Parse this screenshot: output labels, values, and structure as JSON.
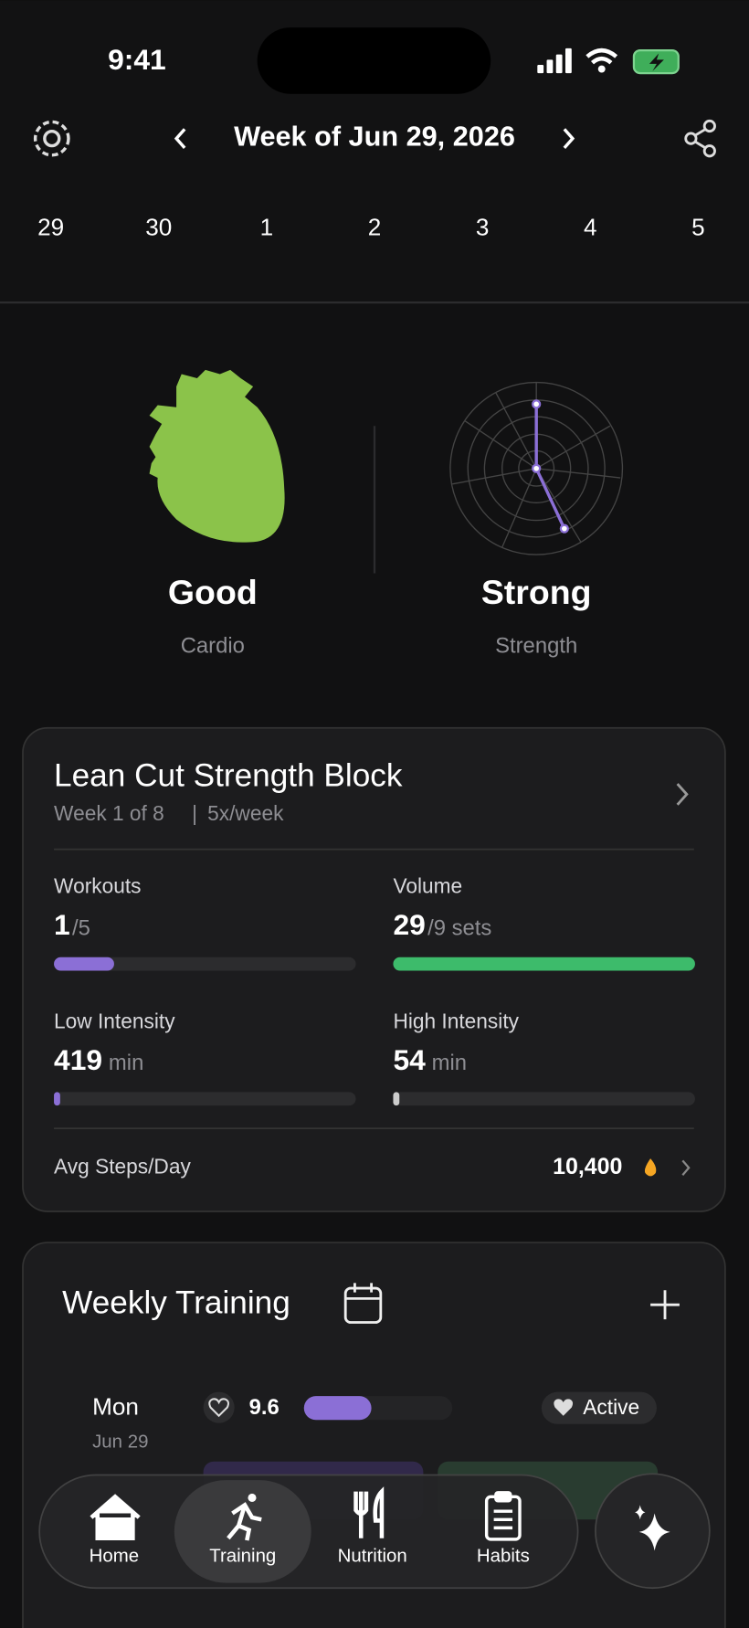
{
  "status": {
    "time": "9:41"
  },
  "header": {
    "title": "Week of Jun 29, 2026",
    "days": [
      "29",
      "30",
      "1",
      "2",
      "3",
      "4",
      "5"
    ]
  },
  "scores": [
    {
      "value": "Good",
      "label": "Cardio"
    },
    {
      "value": "Strong",
      "label": "Strength"
    }
  ],
  "program": {
    "title": "Lean Cut Strength Block",
    "week": "Week 1 of 8",
    "frequency": "5x/week",
    "metrics": [
      {
        "label": "Workouts",
        "value": "1",
        "unit": "/5"
      },
      {
        "label": "Volume",
        "value": "29",
        "unit": "/9 sets"
      },
      {
        "label": "Low Intensity",
        "value": "419",
        "unit": "min"
      },
      {
        "label": "High Intensity",
        "value": "54",
        "unit": "min"
      }
    ],
    "steps": {
      "label": "Avg Steps/Day",
      "value": "10,400"
    }
  },
  "weekly": {
    "title": "Weekly Training",
    "day": "Mon",
    "date": "Jun 29",
    "score": "9.6",
    "status": "Active"
  },
  "nav": [
    "Home",
    "Training",
    "Nutrition",
    "Habits"
  ]
}
